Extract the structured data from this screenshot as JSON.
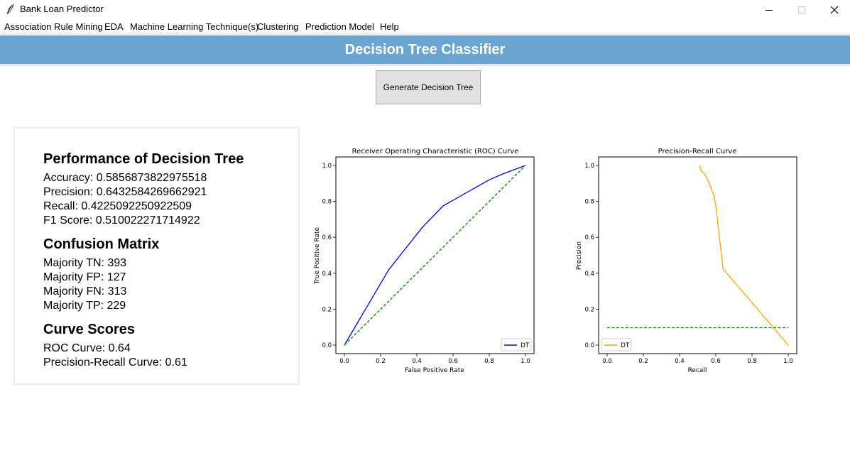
{
  "window": {
    "title": "Bank Loan Predictor",
    "icon": "feather-icon"
  },
  "menu": {
    "items": [
      "Association Rule Mining",
      "EDA",
      "Machine Learning Technique(s)",
      "Clustering",
      "Prediction Model",
      "Help"
    ]
  },
  "header": {
    "title": "Decision Tree Classifier",
    "color": "#6ba5cf"
  },
  "button": {
    "label": "Generate Decision Tree"
  },
  "performance": {
    "title": "Performance of Decision Tree",
    "accuracy": "Accuracy: 0.5856873822975518",
    "precision": "Precision: 0.6432584269662921",
    "recall": "Recall: 0.4225092250922509",
    "f1": "F1 Score: 0.510022271714922"
  },
  "confusion": {
    "title": "Confusion Matrix",
    "tn": "Majority TN: 393",
    "fp": "Majority FP: 127",
    "fn": "Majority FN: 313",
    "tp": "Majority TP: 229"
  },
  "curves": {
    "title": "Curve Scores",
    "roc": "ROC Curve: 0.64",
    "pr": "Precision-Recall Curve: 0.61"
  },
  "chart_data": [
    {
      "type": "line",
      "title": "Receiver Operating Characteristic (ROC) Curve",
      "xlabel": "False Positive Rate",
      "ylabel": "True Positive Rate",
      "xlim": [
        0,
        1
      ],
      "ylim": [
        0,
        1
      ],
      "ticks": [
        "0.0",
        "0.2",
        "0.4",
        "0.6",
        "0.8",
        "1.0"
      ],
      "legend": "lower-right",
      "grid": false,
      "series": [
        {
          "name": "DT",
          "color": "#0000ff",
          "style": "solid",
          "x": [
            0.0,
            0.245,
            0.43,
            0.545,
            0.8,
            0.88,
            1.0
          ],
          "y": [
            0.0,
            0.42,
            0.655,
            0.775,
            0.92,
            0.955,
            1.0
          ]
        },
        {
          "color": "#008000",
          "style": "dashed",
          "x": [
            0.0,
            1.0
          ],
          "y": [
            0.0,
            1.0
          ]
        }
      ]
    },
    {
      "type": "line",
      "title": "Precision-Recall Curve",
      "xlabel": "Recall",
      "ylabel": "Precision",
      "xlim": [
        0,
        1
      ],
      "ylim": [
        0,
        1
      ],
      "ticks": [
        "0.0",
        "0.2",
        "0.4",
        "0.6",
        "0.8",
        "1.0"
      ],
      "legend": "lower-left",
      "grid": false,
      "series": [
        {
          "name": "DT",
          "color": "#ffa500",
          "style": "solid",
          "x": [
            0.51,
            0.52,
            0.54,
            0.56,
            0.59,
            0.6,
            0.62,
            0.64,
            1.0
          ],
          "y": [
            1.0,
            0.97,
            0.95,
            0.91,
            0.83,
            0.775,
            0.6,
            0.425,
            0.0
          ]
        },
        {
          "color": "#008000",
          "style": "dashed",
          "x": [
            0.0,
            1.0
          ],
          "y": [
            0.097,
            0.097
          ]
        }
      ]
    }
  ]
}
